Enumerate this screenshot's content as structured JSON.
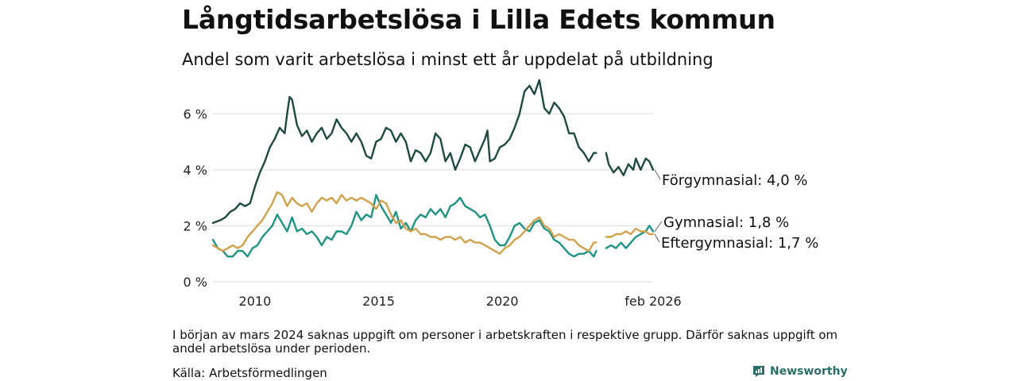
{
  "title": "Långtidsarbetslösa i Lilla Edets kommun",
  "subtitle": "Andel som varit arbetslösa i minst ett år uppdelat på utbildning",
  "note": "I början av mars 2024 saknas uppgift om personer i arbetskraften i respektive grupp. Därför saknas uppgift om andel arbetslösa under perioden.",
  "source": "Källa: Arbetsförmedlingen",
  "brand": "Newsworthy",
  "colors": {
    "forgymnasial": "#1e4a3f",
    "gymnasial": "#1f9384",
    "eftergymnasial": "#d0a24d",
    "grid": "#dcdcdc",
    "brand": "#2b6f6a"
  },
  "chart_data": {
    "type": "line",
    "title": "Långtidsarbetslösa i Lilla Edets kommun",
    "xlabel": "",
    "ylabel": "",
    "xlim": [
      2008.3,
      2026.1
    ],
    "ylim": [
      0,
      7
    ],
    "y_ticks": [
      0,
      2,
      4,
      6
    ],
    "y_tick_labels": [
      "0 %",
      "2 %",
      "4 %",
      "6 %"
    ],
    "x_ticks": [
      2010,
      2015,
      2020,
      2026.1
    ],
    "x_tick_labels": [
      "2010",
      "2015",
      "2020",
      "feb 2026"
    ],
    "gap": [
      2023.8,
      2024.2
    ],
    "series": [
      {
        "name": "Förgymnasial",
        "label": "Förgymnasial: 4,0 %",
        "color_key": "forgymnasial",
        "points": [
          [
            2008.3,
            2.1
          ],
          [
            2008.6,
            2.2
          ],
          [
            2008.8,
            2.3
          ],
          [
            2009.0,
            2.5
          ],
          [
            2009.2,
            2.6
          ],
          [
            2009.4,
            2.8
          ],
          [
            2009.6,
            2.7
          ],
          [
            2009.8,
            2.8
          ],
          [
            2010.0,
            3.4
          ],
          [
            2010.2,
            3.9
          ],
          [
            2010.4,
            4.3
          ],
          [
            2010.6,
            4.8
          ],
          [
            2010.8,
            5.1
          ],
          [
            2011.0,
            5.5
          ],
          [
            2011.2,
            5.3
          ],
          [
            2011.3,
            6.0
          ],
          [
            2011.4,
            6.6
          ],
          [
            2011.5,
            6.5
          ],
          [
            2011.7,
            5.6
          ],
          [
            2011.9,
            5.2
          ],
          [
            2012.1,
            5.4
          ],
          [
            2012.3,
            5.0
          ],
          [
            2012.5,
            5.3
          ],
          [
            2012.7,
            5.5
          ],
          [
            2012.9,
            5.1
          ],
          [
            2013.1,
            5.3
          ],
          [
            2013.3,
            5.8
          ],
          [
            2013.5,
            5.5
          ],
          [
            2013.7,
            5.3
          ],
          [
            2013.9,
            5.0
          ],
          [
            2014.1,
            5.3
          ],
          [
            2014.3,
            5.0
          ],
          [
            2014.5,
            4.5
          ],
          [
            2014.7,
            4.4
          ],
          [
            2014.9,
            5.0
          ],
          [
            2015.1,
            5.1
          ],
          [
            2015.3,
            5.5
          ],
          [
            2015.5,
            5.4
          ],
          [
            2015.7,
            5.0
          ],
          [
            2015.9,
            5.3
          ],
          [
            2016.1,
            5.0
          ],
          [
            2016.3,
            4.3
          ],
          [
            2016.5,
            4.7
          ],
          [
            2016.7,
            4.6
          ],
          [
            2016.9,
            4.3
          ],
          [
            2017.1,
            4.6
          ],
          [
            2017.3,
            5.3
          ],
          [
            2017.5,
            5.1
          ],
          [
            2017.7,
            4.3
          ],
          [
            2017.9,
            4.6
          ],
          [
            2018.1,
            4.0
          ],
          [
            2018.3,
            4.4
          ],
          [
            2018.5,
            4.9
          ],
          [
            2018.7,
            4.8
          ],
          [
            2018.9,
            4.3
          ],
          [
            2019.1,
            4.7
          ],
          [
            2019.3,
            5.1
          ],
          [
            2019.4,
            5.4
          ],
          [
            2019.5,
            4.3
          ],
          [
            2019.7,
            4.4
          ],
          [
            2019.9,
            4.8
          ],
          [
            2020.1,
            4.9
          ],
          [
            2020.3,
            5.1
          ],
          [
            2020.5,
            5.5
          ],
          [
            2020.7,
            6.0
          ],
          [
            2020.9,
            6.8
          ],
          [
            2021.1,
            7.0
          ],
          [
            2021.3,
            6.7
          ],
          [
            2021.5,
            7.2
          ],
          [
            2021.7,
            6.2
          ],
          [
            2021.9,
            6.0
          ],
          [
            2022.1,
            6.4
          ],
          [
            2022.3,
            6.2
          ],
          [
            2022.5,
            5.9
          ],
          [
            2022.7,
            5.3
          ],
          [
            2022.9,
            5.3
          ],
          [
            2023.1,
            4.8
          ],
          [
            2023.3,
            4.6
          ],
          [
            2023.5,
            4.3
          ],
          [
            2023.7,
            4.6
          ],
          [
            2023.8,
            4.6
          ],
          [
            2024.2,
            4.6
          ],
          [
            2024.3,
            4.2
          ],
          [
            2024.5,
            3.9
          ],
          [
            2024.7,
            4.1
          ],
          [
            2024.9,
            3.8
          ],
          [
            2025.1,
            4.2
          ],
          [
            2025.3,
            4.0
          ],
          [
            2025.4,
            4.4
          ],
          [
            2025.6,
            4.0
          ],
          [
            2025.8,
            4.4
          ],
          [
            2025.95,
            4.3
          ],
          [
            2026.1,
            4.0
          ]
        ]
      },
      {
        "name": "Gymnasial",
        "label": "Gymnasial: 1,8 %",
        "color_key": "gymnasial",
        "points": [
          [
            2008.3,
            1.5
          ],
          [
            2008.5,
            1.2
          ],
          [
            2008.7,
            1.1
          ],
          [
            2008.9,
            0.9
          ],
          [
            2009.1,
            0.9
          ],
          [
            2009.3,
            1.1
          ],
          [
            2009.5,
            1.1
          ],
          [
            2009.7,
            0.9
          ],
          [
            2009.9,
            1.2
          ],
          [
            2010.1,
            1.3
          ],
          [
            2010.3,
            1.6
          ],
          [
            2010.5,
            1.8
          ],
          [
            2010.7,
            2.0
          ],
          [
            2010.9,
            2.4
          ],
          [
            2011.1,
            2.1
          ],
          [
            2011.3,
            1.8
          ],
          [
            2011.5,
            2.3
          ],
          [
            2011.7,
            1.8
          ],
          [
            2011.9,
            1.9
          ],
          [
            2012.1,
            1.7
          ],
          [
            2012.3,
            1.8
          ],
          [
            2012.5,
            1.6
          ],
          [
            2012.7,
            1.3
          ],
          [
            2012.9,
            1.6
          ],
          [
            2013.1,
            1.5
          ],
          [
            2013.3,
            1.8
          ],
          [
            2013.5,
            1.8
          ],
          [
            2013.7,
            1.7
          ],
          [
            2013.9,
            2.0
          ],
          [
            2014.1,
            2.5
          ],
          [
            2014.3,
            2.2
          ],
          [
            2014.5,
            2.4
          ],
          [
            2014.7,
            2.3
          ],
          [
            2014.9,
            3.1
          ],
          [
            2015.1,
            2.7
          ],
          [
            2015.3,
            2.4
          ],
          [
            2015.5,
            2.1
          ],
          [
            2015.7,
            2.5
          ],
          [
            2015.9,
            1.9
          ],
          [
            2016.1,
            2.1
          ],
          [
            2016.3,
            1.8
          ],
          [
            2016.5,
            2.2
          ],
          [
            2016.7,
            2.4
          ],
          [
            2016.9,
            2.3
          ],
          [
            2017.1,
            2.6
          ],
          [
            2017.3,
            2.4
          ],
          [
            2017.5,
            2.6
          ],
          [
            2017.7,
            2.3
          ],
          [
            2017.9,
            2.7
          ],
          [
            2018.1,
            2.8
          ],
          [
            2018.3,
            3.0
          ],
          [
            2018.5,
            2.7
          ],
          [
            2018.7,
            2.6
          ],
          [
            2018.9,
            2.5
          ],
          [
            2019.1,
            2.3
          ],
          [
            2019.3,
            2.4
          ],
          [
            2019.5,
            2.0
          ],
          [
            2019.7,
            1.5
          ],
          [
            2019.9,
            1.3
          ],
          [
            2020.1,
            1.3
          ],
          [
            2020.3,
            1.6
          ],
          [
            2020.5,
            2.0
          ],
          [
            2020.7,
            2.1
          ],
          [
            2020.9,
            1.9
          ],
          [
            2021.1,
            1.8
          ],
          [
            2021.3,
            2.1
          ],
          [
            2021.5,
            2.2
          ],
          [
            2021.7,
            1.9
          ],
          [
            2021.9,
            1.8
          ],
          [
            2022.1,
            1.5
          ],
          [
            2022.3,
            1.4
          ],
          [
            2022.5,
            1.2
          ],
          [
            2022.7,
            1.0
          ],
          [
            2022.9,
            0.9
          ],
          [
            2023.1,
            1.0
          ],
          [
            2023.3,
            1.0
          ],
          [
            2023.5,
            1.1
          ],
          [
            2023.7,
            0.9
          ],
          [
            2023.8,
            1.1
          ],
          [
            2024.2,
            1.2
          ],
          [
            2024.4,
            1.3
          ],
          [
            2024.6,
            1.2
          ],
          [
            2024.8,
            1.4
          ],
          [
            2025.0,
            1.2
          ],
          [
            2025.2,
            1.4
          ],
          [
            2025.4,
            1.6
          ],
          [
            2025.6,
            1.7
          ],
          [
            2025.8,
            1.8
          ],
          [
            2025.95,
            2.0
          ],
          [
            2026.1,
            1.8
          ]
        ]
      },
      {
        "name": "Eftergymnasial",
        "label": "Eftergymnasial: 1,7 %",
        "color_key": "eftergymnasial",
        "points": [
          [
            2008.3,
            1.3
          ],
          [
            2008.5,
            1.2
          ],
          [
            2008.7,
            1.1
          ],
          [
            2008.9,
            1.2
          ],
          [
            2009.1,
            1.3
          ],
          [
            2009.3,
            1.2
          ],
          [
            2009.5,
            1.3
          ],
          [
            2009.7,
            1.6
          ],
          [
            2009.9,
            1.8
          ],
          [
            2010.1,
            2.0
          ],
          [
            2010.3,
            2.2
          ],
          [
            2010.5,
            2.5
          ],
          [
            2010.7,
            2.8
          ],
          [
            2010.9,
            3.2
          ],
          [
            2011.1,
            3.1
          ],
          [
            2011.3,
            2.7
          ],
          [
            2011.5,
            3.0
          ],
          [
            2011.7,
            2.8
          ],
          [
            2011.9,
            2.7
          ],
          [
            2012.1,
            2.8
          ],
          [
            2012.3,
            2.5
          ],
          [
            2012.5,
            2.8
          ],
          [
            2012.7,
            3.0
          ],
          [
            2012.9,
            2.9
          ],
          [
            2013.1,
            3.0
          ],
          [
            2013.3,
            2.8
          ],
          [
            2013.5,
            3.1
          ],
          [
            2013.7,
            2.9
          ],
          [
            2013.9,
            3.0
          ],
          [
            2014.1,
            2.9
          ],
          [
            2014.3,
            3.0
          ],
          [
            2014.5,
            2.9
          ],
          [
            2014.7,
            2.8
          ],
          [
            2014.9,
            2.6
          ],
          [
            2015.1,
            2.9
          ],
          [
            2015.3,
            2.8
          ],
          [
            2015.5,
            2.4
          ],
          [
            2015.7,
            2.1
          ],
          [
            2015.9,
            2.2
          ],
          [
            2016.1,
            1.9
          ],
          [
            2016.3,
            1.8
          ],
          [
            2016.5,
            1.9
          ],
          [
            2016.7,
            1.7
          ],
          [
            2016.9,
            1.7
          ],
          [
            2017.1,
            1.6
          ],
          [
            2017.3,
            1.6
          ],
          [
            2017.5,
            1.5
          ],
          [
            2017.7,
            1.6
          ],
          [
            2017.9,
            1.6
          ],
          [
            2018.1,
            1.5
          ],
          [
            2018.3,
            1.6
          ],
          [
            2018.5,
            1.4
          ],
          [
            2018.7,
            1.5
          ],
          [
            2018.9,
            1.4
          ],
          [
            2019.1,
            1.4
          ],
          [
            2019.3,
            1.3
          ],
          [
            2019.5,
            1.2
          ],
          [
            2019.7,
            1.1
          ],
          [
            2019.9,
            1.0
          ],
          [
            2020.1,
            1.2
          ],
          [
            2020.3,
            1.3
          ],
          [
            2020.5,
            1.5
          ],
          [
            2020.7,
            1.6
          ],
          [
            2020.9,
            1.8
          ],
          [
            2021.1,
            2.0
          ],
          [
            2021.3,
            2.2
          ],
          [
            2021.5,
            2.3
          ],
          [
            2021.7,
            2.0
          ],
          [
            2021.9,
            1.9
          ],
          [
            2022.1,
            1.6
          ],
          [
            2022.3,
            1.7
          ],
          [
            2022.5,
            1.6
          ],
          [
            2022.7,
            1.5
          ],
          [
            2022.9,
            1.5
          ],
          [
            2023.1,
            1.3
          ],
          [
            2023.3,
            1.2
          ],
          [
            2023.5,
            1.1
          ],
          [
            2023.7,
            1.4
          ],
          [
            2023.8,
            1.4
          ],
          [
            2024.2,
            1.6
          ],
          [
            2024.4,
            1.6
          ],
          [
            2024.6,
            1.7
          ],
          [
            2024.8,
            1.7
          ],
          [
            2025.0,
            1.8
          ],
          [
            2025.2,
            1.7
          ],
          [
            2025.4,
            1.9
          ],
          [
            2025.6,
            1.8
          ],
          [
            2025.8,
            1.8
          ],
          [
            2025.95,
            1.7
          ],
          [
            2026.1,
            1.7
          ]
        ]
      }
    ]
  }
}
